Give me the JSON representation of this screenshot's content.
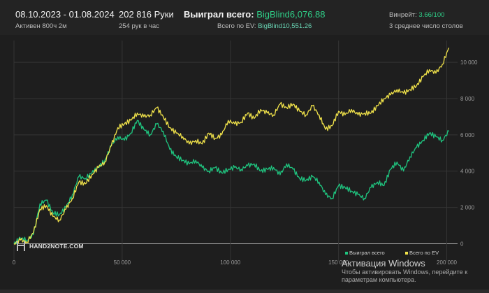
{
  "header": {
    "date_range": "08.10.2023 - 01.08.2024",
    "active_time": "Активен 800ч 2м",
    "hands": "202 816 Руки",
    "hands_per_hour": "254 рук в час",
    "won_label": "Выиграл всего:",
    "won_value": "BigBlind6,076.88",
    "ev_label": "Всего по EV:",
    "ev_value": "BigBlind10,551.26",
    "winrate_label": "Винрейт:",
    "winrate_value": "3.66/100",
    "tables_avg": "3 среднее число столов"
  },
  "logo": {
    "text": "HAND2NOTE.COM"
  },
  "watermark": {
    "title": "Активация Windows",
    "line1": "Чтобы активировать Windows, перейдите к",
    "line2": "параметрам компьютера."
  },
  "colors": {
    "won": "#1fc47f",
    "ev": "#f0e24a",
    "zero_line": "#9a9a9a",
    "grid": "#343434"
  },
  "chart_data": {
    "type": "line",
    "x_tick_labels": [
      "0",
      "50 000",
      "100 000",
      "150 000",
      "200 000"
    ],
    "x_ticks": [
      0,
      50000,
      100000,
      150000,
      200000
    ],
    "y_tick_labels": [
      "0",
      "2 000",
      "4 000",
      "6 000",
      "8 000",
      "10 000"
    ],
    "y_ticks": [
      0,
      2000,
      4000,
      6000,
      8000,
      10000
    ],
    "xlim": [
      0,
      205000
    ],
    "ylim": [
      -600,
      11200
    ],
    "legend": {
      "placement": "bottom-center",
      "entries": [
        "Выиграл всего",
        "Всего по EV"
      ]
    },
    "series": [
      {
        "name": "Выиграл всего",
        "color": "#1fc47f",
        "x": [
          0,
          3000,
          6000,
          9000,
          12000,
          15000,
          18000,
          21000,
          24000,
          27000,
          30000,
          33000,
          36000,
          39000,
          42000,
          45000,
          48000,
          51000,
          54000,
          57000,
          60000,
          63000,
          66000,
          69000,
          72000,
          75000,
          78000,
          81000,
          84000,
          87000,
          90000,
          93000,
          96000,
          99000,
          102000,
          105000,
          108000,
          111000,
          114000,
          117000,
          120000,
          123000,
          126000,
          129000,
          132000,
          135000,
          138000,
          141000,
          144000,
          147000,
          150000,
          153000,
          156000,
          159000,
          162000,
          165000,
          168000,
          171000,
          174000,
          177000,
          180000,
          183000,
          186000,
          189000,
          192000,
          195000,
          198000,
          201000
        ],
        "values": [
          0,
          300,
          200,
          500,
          2200,
          2400,
          1700,
          1600,
          2000,
          2700,
          3700,
          3600,
          3900,
          4200,
          4600,
          5400,
          5900,
          5700,
          6100,
          6800,
          6300,
          6000,
          6600,
          6200,
          5200,
          4800,
          4600,
          4400,
          4600,
          4200,
          4000,
          4200,
          3900,
          4100,
          4200,
          4100,
          4300,
          4400,
          4000,
          4100,
          4200,
          3800,
          4400,
          4100,
          3600,
          3500,
          3700,
          3400,
          2700,
          2500,
          3200,
          3100,
          2900,
          2700,
          2500,
          3100,
          3400,
          3200,
          4100,
          4500,
          4000,
          4800,
          5300,
          5700,
          6100,
          5900,
          5700,
          6200
        ]
      },
      {
        "name": "Всего по EV",
        "color": "#f0e24a",
        "x": [
          0,
          3000,
          6000,
          9000,
          12000,
          15000,
          18000,
          21000,
          24000,
          27000,
          30000,
          33000,
          36000,
          39000,
          42000,
          45000,
          48000,
          51000,
          54000,
          57000,
          60000,
          63000,
          66000,
          69000,
          72000,
          75000,
          78000,
          81000,
          84000,
          87000,
          90000,
          93000,
          96000,
          99000,
          102000,
          105000,
          108000,
          111000,
          114000,
          117000,
          120000,
          123000,
          126000,
          129000,
          132000,
          135000,
          138000,
          141000,
          144000,
          147000,
          150000,
          153000,
          156000,
          159000,
          162000,
          165000,
          168000,
          171000,
          174000,
          177000,
          180000,
          183000,
          186000,
          189000,
          192000,
          195000,
          198000,
          201000
        ],
        "values": [
          0,
          200,
          100,
          600,
          1900,
          2100,
          1500,
          1300,
          1900,
          2500,
          3400,
          3300,
          3800,
          4200,
          4500,
          5400,
          6400,
          6600,
          6800,
          7200,
          7000,
          7100,
          7500,
          7000,
          6400,
          6100,
          5900,
          5500,
          5700,
          5500,
          6100,
          5800,
          6000,
          6800,
          6600,
          6700,
          7200,
          6900,
          7400,
          7200,
          7100,
          7700,
          7500,
          7700,
          7300,
          7100,
          7600,
          7100,
          6300,
          6500,
          7300,
          7100,
          7400,
          7100,
          7200,
          7200,
          7600,
          8000,
          8200,
          8500,
          8300,
          8500,
          8700,
          9200,
          9600,
          9400,
          9900,
          10800
        ]
      }
    ]
  }
}
